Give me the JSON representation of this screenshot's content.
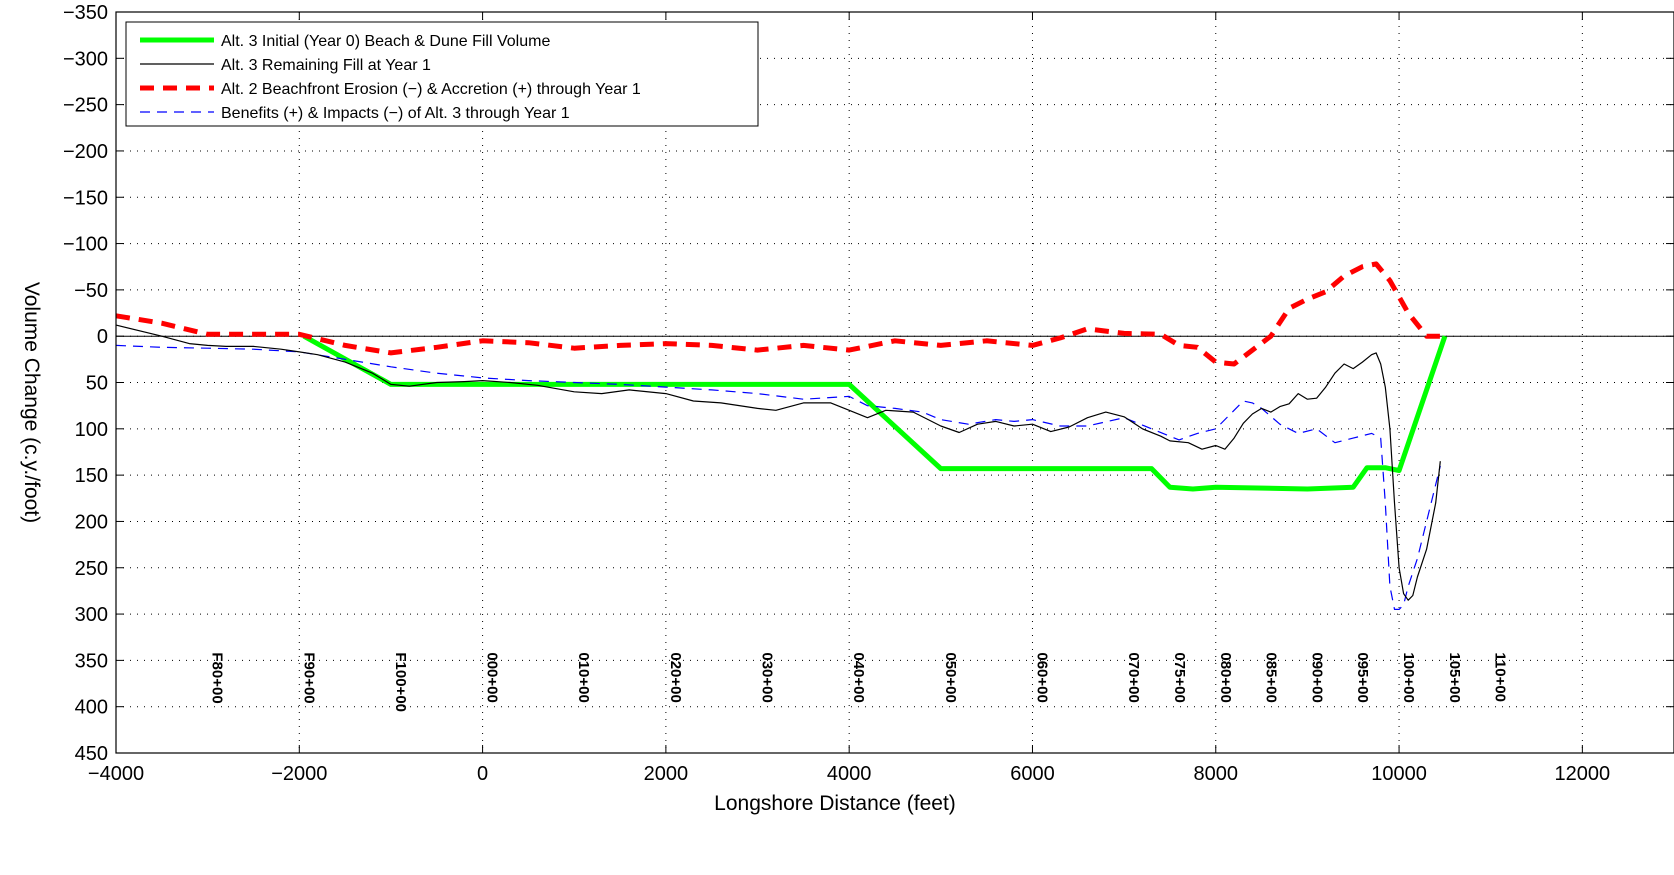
{
  "chart_data": {
    "type": "line",
    "title": "",
    "xlabel": "Longshore Distance (feet)",
    "ylabel": "Volume Change (c.y./foot)",
    "xlim": [
      -4000,
      13000
    ],
    "ylim": [
      -350,
      450
    ],
    "y_axis_reversed": true,
    "x_ticks": [
      -4000,
      -2000,
      0,
      2000,
      4000,
      6000,
      8000,
      10000,
      12000
    ],
    "x_tick_labels": [
      "−4000",
      "−2000",
      "0",
      "2000",
      "4000",
      "6000",
      "8000",
      "10000",
      "12000"
    ],
    "y_ticks": [
      -350,
      -300,
      -250,
      -200,
      -150,
      -100,
      -50,
      0,
      50,
      100,
      150,
      200,
      250,
      300,
      350,
      400,
      450
    ],
    "y_tick_labels": [
      "−350",
      "−300",
      "−250",
      "−200",
      "−150",
      "−100",
      "−50",
      "0",
      "50",
      "100",
      "150",
      "200",
      "250",
      "300",
      "350",
      "400",
      "450"
    ],
    "grid": true,
    "legend_position": "top-left",
    "zero_line": true,
    "series": [
      {
        "name": "Alt. 3 Initial (Year 0) Beach & Dune Fill Volume",
        "color": "#00ff00",
        "style": "solid-thick",
        "x": [
          -1950,
          -1000,
          4000,
          5000,
          7300,
          7500,
          7750,
          8000,
          9000,
          9500,
          9650,
          9850,
          10000,
          10500
        ],
        "y": [
          0,
          52,
          52,
          143,
          143,
          163,
          165,
          163,
          165,
          163,
          142,
          142,
          145,
          0
        ]
      },
      {
        "name": "Alt. 3 Remaining Fill at Year 1",
        "color": "#000000",
        "style": "solid-thin",
        "x": [
          -4000,
          -3500,
          -3200,
          -3000,
          -2800,
          -2500,
          -2200,
          -2000,
          -1800,
          -1500,
          -1200,
          -1000,
          -800,
          -500,
          -200,
          0,
          300,
          600,
          1000,
          1300,
          1600,
          2000,
          2300,
          2600,
          3000,
          3200,
          3500,
          3800,
          4000,
          4200,
          4400,
          4700,
          5000,
          5200,
          5400,
          5600,
          5800,
          6000,
          6200,
          6400,
          6600,
          6800,
          7000,
          7200,
          7400,
          7500,
          7700,
          7850,
          8000,
          8100,
          8200,
          8300,
          8400,
          8500,
          8600,
          8700,
          8800,
          8900,
          9000,
          9100,
          9200,
          9300,
          9400,
          9500,
          9600,
          9700,
          9750,
          9800,
          9850,
          9900,
          9950,
          10000,
          10050,
          10100,
          10150,
          10200,
          10300,
          10400,
          10450
        ],
        "y": [
          -12,
          0,
          8,
          10,
          11,
          11,
          14,
          17,
          20,
          28,
          40,
          52,
          54,
          50,
          49,
          48,
          50,
          53,
          60,
          62,
          58,
          62,
          70,
          72,
          78,
          80,
          72,
          72,
          80,
          88,
          80,
          82,
          97,
          104,
          95,
          92,
          97,
          95,
          103,
          98,
          88,
          82,
          87,
          100,
          108,
          113,
          115,
          122,
          118,
          122,
          110,
          94,
          84,
          78,
          82,
          76,
          73,
          62,
          68,
          67,
          55,
          40,
          30,
          35,
          28,
          20,
          18,
          30,
          55,
          100,
          180,
          250,
          278,
          285,
          280,
          260,
          230,
          180,
          135
        ]
      },
      {
        "name": "Alt. 2 Beachfront Erosion (−) & Accretion (+) through Year 1",
        "color": "#ff0000",
        "style": "dashed-thick",
        "x": [
          -4000,
          -3500,
          -3000,
          -2500,
          -2000,
          -1500,
          -1000,
          -500,
          0,
          500,
          1000,
          1500,
          2000,
          2500,
          3000,
          3500,
          4000,
          4500,
          5000,
          5500,
          6000,
          6300,
          6600,
          7000,
          7400,
          7600,
          7800,
          8000,
          8200,
          8400,
          8600,
          8800,
          9000,
          9200,
          9400,
          9600,
          9750,
          9900,
          10100,
          10300,
          10500
        ],
        "y": [
          -22,
          -14,
          -2,
          -2,
          -2,
          10,
          18,
          12,
          5,
          7,
          13,
          10,
          8,
          10,
          15,
          10,
          15,
          5,
          10,
          5,
          10,
          2,
          -8,
          -3,
          -2,
          10,
          12,
          28,
          30,
          15,
          0,
          -30,
          -40,
          -48,
          -65,
          -75,
          -78,
          -60,
          -25,
          0,
          0
        ]
      },
      {
        "name": "Benefits (+) & Impacts (−) of Alt. 3 through Year 1",
        "color": "#0000ff",
        "style": "dashed-thin",
        "x": [
          -4000,
          -3500,
          -3000,
          -2500,
          -2000,
          -1500,
          -1000,
          -500,
          0,
          500,
          1000,
          1500,
          2000,
          2500,
          3000,
          3500,
          4000,
          4200,
          4500,
          4800,
          5000,
          5300,
          5600,
          5800,
          6000,
          6300,
          6600,
          7000,
          7300,
          7600,
          7800,
          8000,
          8200,
          8300,
          8400,
          8500,
          8700,
          8900,
          9100,
          9300,
          9500,
          9700,
          9800,
          9850,
          9900,
          9950,
          10000,
          10050,
          10100,
          10200,
          10300,
          10450
        ],
        "y": [
          10,
          12,
          13,
          14,
          17,
          25,
          33,
          40,
          45,
          48,
          50,
          52,
          55,
          58,
          62,
          68,
          65,
          75,
          78,
          82,
          90,
          95,
          90,
          92,
          90,
          97,
          97,
          88,
          100,
          112,
          105,
          100,
          80,
          70,
          72,
          78,
          95,
          105,
          100,
          115,
          110,
          105,
          110,
          180,
          270,
          295,
          295,
          290,
          270,
          240,
          200,
          140
        ]
      }
    ],
    "station_labels": [
      {
        "text": "F80+00",
        "x": -3000
      },
      {
        "text": "F90+00",
        "x": -2000
      },
      {
        "text": "F100+00",
        "x": -1000
      },
      {
        "text": "000+00",
        "x": 0
      },
      {
        "text": "010+00",
        "x": 1000
      },
      {
        "text": "020+00",
        "x": 2000
      },
      {
        "text": "030+00",
        "x": 3000
      },
      {
        "text": "040+00",
        "x": 4000
      },
      {
        "text": "050+00",
        "x": 5000
      },
      {
        "text": "060+00",
        "x": 6000
      },
      {
        "text": "070+00",
        "x": 7000
      },
      {
        "text": "075+00",
        "x": 7500
      },
      {
        "text": "080+00",
        "x": 8000
      },
      {
        "text": "085+00",
        "x": 8500
      },
      {
        "text": "090+00",
        "x": 9000
      },
      {
        "text": "095+00",
        "x": 9500
      },
      {
        "text": "100+00",
        "x": 10000
      },
      {
        "text": "105+00",
        "x": 10500
      },
      {
        "text": "110+00",
        "x": 11000
      }
    ]
  }
}
